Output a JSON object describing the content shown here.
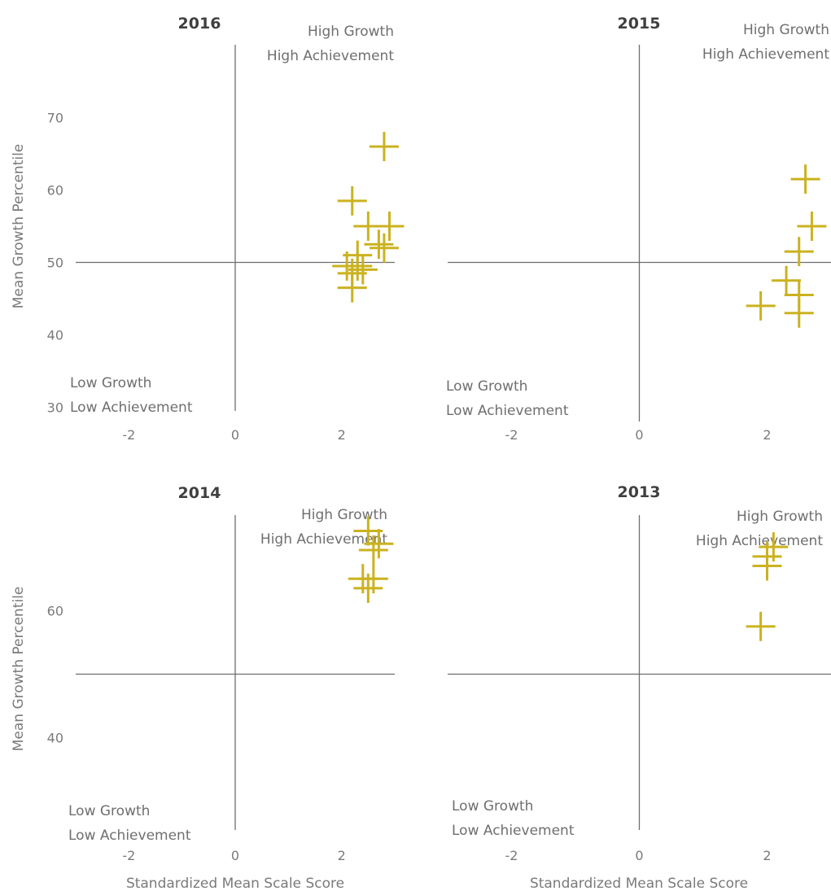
{
  "chart_data": [
    {
      "type": "scatter",
      "title": "2016",
      "ylabel": "Mean Growth Percentile",
      "xlabel": "",
      "quadrant_labels": {
        "high": [
          "High Growth",
          "High Achievement"
        ],
        "low": [
          "Low Growth",
          "Low Achievement"
        ]
      },
      "x_ticks": [
        -2,
        0,
        2
      ],
      "y_ticks": [
        30,
        40,
        50,
        60,
        70
      ],
      "xlim": [
        -3,
        3
      ],
      "ylim": [
        25,
        75
      ],
      "marker_color": "#cbb21f",
      "points": [
        {
          "x": 2.8,
          "y": 66
        },
        {
          "x": 2.2,
          "y": 58.5
        },
        {
          "x": 2.5,
          "y": 55
        },
        {
          "x": 2.9,
          "y": 55
        },
        {
          "x": 2.7,
          "y": 52.5
        },
        {
          "x": 2.8,
          "y": 52
        },
        {
          "x": 2.3,
          "y": 51
        },
        {
          "x": 2.1,
          "y": 49.5
        },
        {
          "x": 2.3,
          "y": 49.5
        },
        {
          "x": 2.4,
          "y": 49
        },
        {
          "x": 2.2,
          "y": 48.5
        },
        {
          "x": 2.2,
          "y": 46.5
        }
      ]
    },
    {
      "type": "scatter",
      "title": "2015",
      "ylabel": "",
      "xlabel": "",
      "quadrant_labels": {
        "high": [
          "High Growth",
          "High Achievement"
        ],
        "low": [
          "Low Growth",
          "Low Achievement"
        ]
      },
      "x_ticks": [
        -2,
        0,
        2
      ],
      "y_ticks": [],
      "xlim": [
        -3,
        3
      ],
      "ylim": [
        25,
        75
      ],
      "marker_color": "#cbb21f",
      "points": [
        {
          "x": 2.6,
          "y": 61.5
        },
        {
          "x": 2.7,
          "y": 55
        },
        {
          "x": 2.5,
          "y": 51.5
        },
        {
          "x": 2.3,
          "y": 47.5
        },
        {
          "x": 2.5,
          "y": 45.5
        },
        {
          "x": 2.5,
          "y": 43
        },
        {
          "x": 1.9,
          "y": 44
        }
      ]
    },
    {
      "type": "scatter",
      "title": "2014",
      "ylabel": "Mean Growth Percentile",
      "xlabel": "Standardized Mean Scale Score",
      "quadrant_labels": {
        "high": [
          "High Growth",
          "High Achievement"
        ],
        "low": [
          "Low Growth",
          "Low Achievement"
        ]
      },
      "x_ticks": [
        -2,
        0,
        2
      ],
      "y_ticks": [
        40,
        60
      ],
      "xlim": [
        -3,
        3
      ],
      "ylim": [
        25,
        75
      ],
      "marker_color": "#cbb21f",
      "points": [
        {
          "x": 2.5,
          "y": 72.5
        },
        {
          "x": 2.7,
          "y": 70.5
        },
        {
          "x": 2.6,
          "y": 69.5
        },
        {
          "x": 2.4,
          "y": 65
        },
        {
          "x": 2.6,
          "y": 65
        },
        {
          "x": 2.5,
          "y": 63.5
        }
      ]
    },
    {
      "type": "scatter",
      "title": "2013",
      "ylabel": "",
      "xlabel": "Standardized Mean Scale Score",
      "quadrant_labels": {
        "high": [
          "High Growth",
          "High Achievement"
        ],
        "low": [
          "Low Growth",
          "Low Achievement"
        ]
      },
      "x_ticks": [
        -2,
        0,
        2
      ],
      "y_ticks": [],
      "xlim": [
        -3,
        3
      ],
      "ylim": [
        25,
        75
      ],
      "marker_color": "#cbb21f",
      "points": [
        {
          "x": 2.1,
          "y": 70
        },
        {
          "x": 2.0,
          "y": 68.5
        },
        {
          "x": 2.0,
          "y": 67
        },
        {
          "x": 1.9,
          "y": 57.5
        }
      ]
    }
  ]
}
